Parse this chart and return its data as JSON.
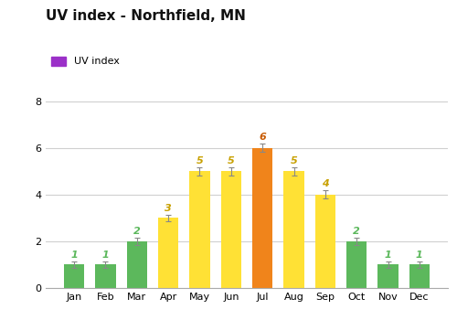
{
  "title": "UV index - Northfield, MN",
  "legend_label": "UV index",
  "legend_color": "#9b30c8",
  "months": [
    "Jan",
    "Feb",
    "Mar",
    "Apr",
    "May",
    "Jun",
    "Jul",
    "Aug",
    "Sep",
    "Oct",
    "Nov",
    "Dec"
  ],
  "values": [
    1,
    1,
    2,
    3,
    5,
    5,
    6,
    5,
    4,
    2,
    1,
    1
  ],
  "bar_colors": [
    "#5cb85c",
    "#5cb85c",
    "#5cb85c",
    "#ffe135",
    "#ffe135",
    "#ffe135",
    "#f0841b",
    "#ffe135",
    "#ffe135",
    "#5cb85c",
    "#5cb85c",
    "#5cb85c"
  ],
  "label_colors": [
    "#5cb85c",
    "#5cb85c",
    "#5cb85c",
    "#c8a000",
    "#c8a000",
    "#c8a000",
    "#c85a00",
    "#c8a000",
    "#c8a000",
    "#5cb85c",
    "#5cb85c",
    "#5cb85c"
  ],
  "error": [
    0.12,
    0.12,
    0.15,
    0.15,
    0.18,
    0.18,
    0.18,
    0.18,
    0.18,
    0.15,
    0.12,
    0.12
  ],
  "ylim": [
    0,
    8.5
  ],
  "yticks": [
    0,
    2,
    4,
    6,
    8
  ],
  "background_color": "#ffffff",
  "grid_color": "#d0d0d0",
  "title_fontsize": 11,
  "label_fontsize": 8,
  "tick_fontsize": 8
}
